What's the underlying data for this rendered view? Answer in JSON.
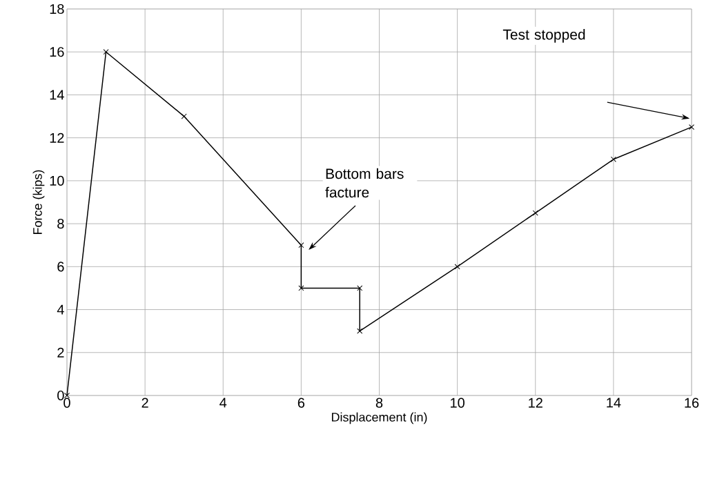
{
  "chart_data": {
    "type": "line",
    "xlabel": "Displacement (in)",
    "ylabel": "Force (kips)",
    "x": [
      0,
      1,
      3,
      6,
      6,
      7.5,
      7.5,
      10,
      12,
      14,
      16
    ],
    "values": [
      0,
      16,
      13,
      7,
      5,
      5,
      3,
      6,
      8.5,
      11,
      12.5
    ],
    "color": "#000000",
    "marker": "cross",
    "line_style": "solid",
    "grid": true,
    "xlim": [
      0,
      16
    ],
    "xticks": [
      0,
      2,
      4,
      6,
      8,
      10,
      12,
      14,
      16
    ],
    "ylim": [
      0,
      18
    ],
    "yticks": [
      0,
      2,
      4,
      6,
      8,
      10,
      12,
      14,
      16,
      18
    ],
    "annotations": [
      "Bottom bars facture",
      "Test stopped"
    ]
  }
}
